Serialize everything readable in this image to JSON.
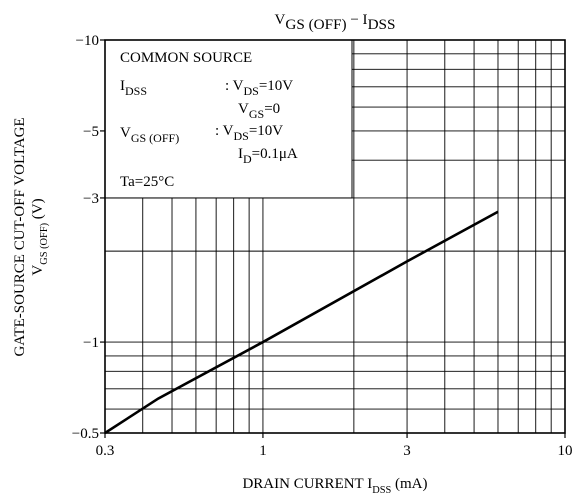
{
  "chart_data": {
    "type": "line",
    "title": [
      "V",
      "GS (OFF)",
      " − I",
      "DSS"
    ],
    "ylabel": [
      "GATE-SOURCE CUT-OFF VOLTAGE"
    ],
    "ylabel2": [
      "V",
      "GS (OFF)",
      "   (V)"
    ],
    "xlabel": [
      "DRAIN CURRENT   I",
      "DSS",
      "   (mA)"
    ],
    "xscale": "log",
    "yscale": "log",
    "xlim": [
      0.3,
      10
    ],
    "ylim": [
      -0.5,
      -10
    ],
    "xticks": [
      0.3,
      1,
      3,
      10
    ],
    "yticks": [
      {
        "value": -0.5,
        "label": "−0.5"
      },
      {
        "value": -1,
        "label": "−1"
      },
      {
        "value": -3,
        "label": "−3"
      },
      {
        "value": -5,
        "label": "−5"
      },
      {
        "value": -10,
        "label": "−10"
      }
    ],
    "xgrid": [
      0.4,
      0.5,
      0.6,
      0.7,
      0.8,
      0.9,
      1,
      2,
      3,
      4,
      5,
      6,
      7,
      8,
      9
    ],
    "ygrid": [
      -0.6,
      -0.7,
      -0.8,
      -0.9,
      -1,
      -2,
      -3,
      -4,
      -5,
      -6,
      -7,
      -8,
      -9
    ],
    "color": "#000000",
    "series": [
      {
        "x": [
          0.3,
          0.45,
          1,
          3,
          6
        ],
        "values": [
          -0.5,
          -0.65,
          -1,
          -1.85,
          -2.7
        ]
      }
    ],
    "annotations": [
      [
        "COMMON SOURCE"
      ],
      [
        "I",
        "DSS"
      ],
      [
        ": V",
        "DS",
        "=10V"
      ],
      [
        "V",
        "GS",
        "=0"
      ],
      [
        "V",
        "GS (OFF)"
      ],
      [
        ": V",
        "DS",
        "=10V"
      ],
      [
        "I",
        "D",
        "=0.1μA"
      ],
      [
        "Ta=25°C"
      ]
    ]
  }
}
